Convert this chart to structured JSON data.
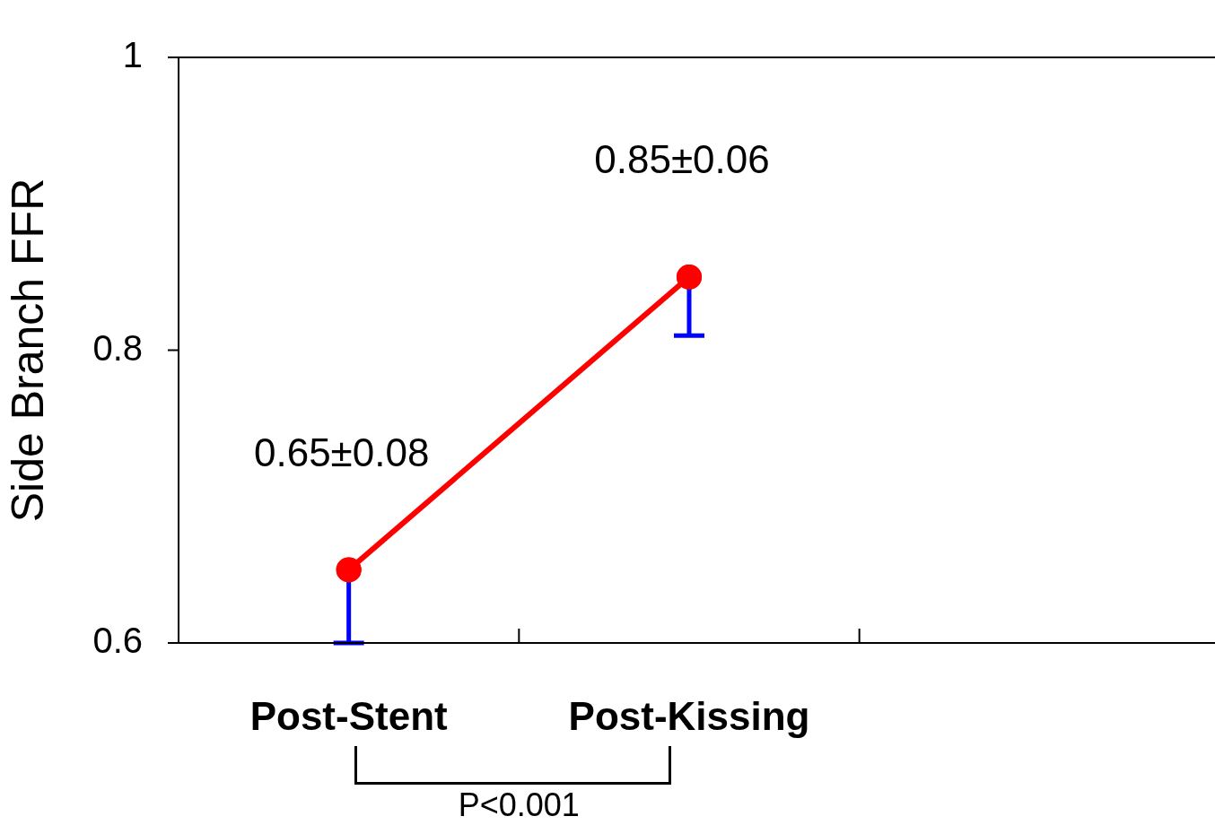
{
  "chart_data": {
    "type": "line",
    "ylabel": "Side Branch FFR",
    "categories": [
      "Post-Stent",
      "Post-Kissing",
      null
    ],
    "series": [
      {
        "color": "#ff0000",
        "values": [
          0.65,
          0.85,
          null
        ],
        "errors": [
          [
            0.6,
            0.65
          ],
          [
            0.81,
            0.85
          ],
          null
        ],
        "value_labels": [
          "0.65±0.08",
          "0.85±0.06",
          null
        ]
      }
    ],
    "ylim": [
      0.6,
      1
    ],
    "yticks": [
      0.6,
      0.8,
      1
    ],
    "marker": "circle",
    "line_style": "solid",
    "annotations": [
      "P<0.001"
    ],
    "grid": false,
    "legend": false
  }
}
